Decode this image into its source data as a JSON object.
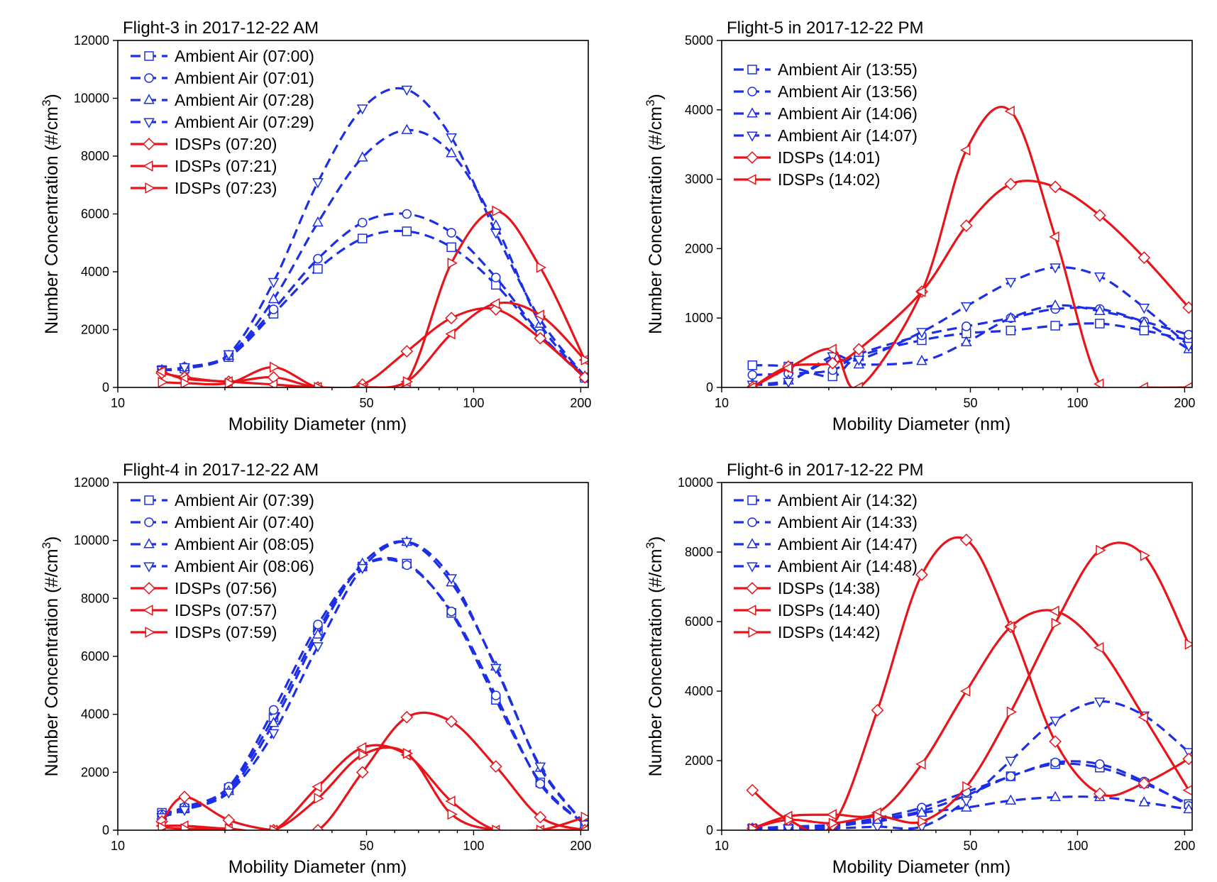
{
  "colors": {
    "ambient": "#1d2fe6",
    "idsp": "#e8141a"
  },
  "chart_data": [
    {
      "type": "line",
      "title": "Flight-3 in 2017-12-22 AM",
      "xlabel": "Mobility Diameter (nm)",
      "ylabel": "Number Concentration (#/cm",
      "ylabel_sup": "3",
      "ylabel_close": ")",
      "x_scale": "log",
      "xlim": [
        10,
        210
      ],
      "ylim": [
        0,
        12000
      ],
      "xticks": [
        10,
        50,
        100,
        200
      ],
      "xtick_labels": [
        "10",
        "50",
        "100",
        "200"
      ],
      "yticks": [
        0,
        2000,
        4000,
        6000,
        8000,
        10000,
        12000
      ],
      "ytick_labels": [
        "0",
        "2000",
        "4000",
        "6000",
        "8000",
        "10000",
        "12000"
      ],
      "legend_position": "top-left",
      "x": [
        13.3,
        15.4,
        20.5,
        27.4,
        36.5,
        48.7,
        64.9,
        86.6,
        115.5,
        153.9,
        205.4
      ],
      "series": [
        {
          "name": "Ambient Air (07:00)",
          "group": "ambient",
          "marker": "square",
          "values": [
            600,
            650,
            1050,
            2550,
            4100,
            5150,
            5400,
            4850,
            3550,
            1800,
            330
          ]
        },
        {
          "name": "Ambient Air (07:01)",
          "group": "ambient",
          "marker": "circle",
          "values": [
            600,
            700,
            1100,
            2700,
            4450,
            5700,
            6000,
            5350,
            3800,
            1850,
            350
          ]
        },
        {
          "name": "Ambient Air (07:28)",
          "group": "ambient",
          "marker": "triangle-up",
          "values": [
            600,
            700,
            1100,
            3050,
            5700,
            7950,
            8900,
            8100,
            5600,
            2200,
            380
          ]
        },
        {
          "name": "Ambient Air (07:29)",
          "group": "ambient",
          "marker": "triangle-down",
          "values": [
            600,
            700,
            1150,
            3650,
            7100,
            9650,
            10300,
            8650,
            5350,
            2350,
            380
          ]
        },
        {
          "name": "IDSPs (07:20)",
          "group": "idsp",
          "marker": "diamond",
          "values": [
            500,
            350,
            200,
            350,
            0,
            100,
            1250,
            2400,
            2700,
            1700,
            350
          ]
        },
        {
          "name": "IDSPs (07:21)",
          "group": "idsp",
          "marker": "triangle-left",
          "values": [
            550,
            300,
            200,
            100,
            0,
            0,
            200,
            1850,
            2900,
            2500,
            950
          ]
        },
        {
          "name": "IDSPs (07:23)",
          "group": "idsp",
          "marker": "triangle-right",
          "values": [
            180,
            150,
            150,
            700,
            0,
            0,
            200,
            4300,
            6100,
            4150,
            950
          ]
        }
      ]
    },
    {
      "type": "line",
      "title": "Flight-5 in 2017-12-22 PM",
      "xlabel": "Mobility Diameter (nm)",
      "ylabel": "Number Concentration (#/cm",
      "ylabel_sup": "3",
      "ylabel_close": ")",
      "x_scale": "log",
      "xlim": [
        10,
        210
      ],
      "ylim": [
        0,
        5000
      ],
      "xticks": [
        10,
        50,
        100,
        200
      ],
      "xtick_labels": [
        "10",
        "50",
        "100",
        "200"
      ],
      "yticks": [
        0,
        1000,
        2000,
        3000,
        4000,
        5000
      ],
      "ytick_labels": [
        "0",
        "1000",
        "2000",
        "3000",
        "4000",
        "5000"
      ],
      "legend_position": "top-left",
      "x": [
        12.2,
        15.4,
        20.5,
        24.3,
        36.5,
        48.7,
        64.9,
        86.6,
        115.5,
        153.9,
        205.4
      ],
      "series": [
        {
          "name": "Ambient Air (13:55)",
          "group": "ambient",
          "marker": "square",
          "values": [
            320,
            300,
            160,
            450,
            680,
            780,
            820,
            890,
            920,
            820,
            680
          ]
        },
        {
          "name": "Ambient Air (13:56)",
          "group": "ambient",
          "marker": "circle",
          "values": [
            180,
            200,
            250,
            480,
            750,
            880,
            1000,
            1130,
            1130,
            950,
            760
          ]
        },
        {
          "name": "Ambient Air (14:06)",
          "group": "ambient",
          "marker": "triangle-up",
          "values": [
            50,
            100,
            400,
            330,
            380,
            650,
            1000,
            1180,
            1100,
            930,
            550
          ]
        },
        {
          "name": "Ambient Air (14:07)",
          "group": "ambient",
          "marker": "triangle-down",
          "values": [
            40,
            80,
            450,
            400,
            800,
            1170,
            1520,
            1730,
            1600,
            1150,
            600
          ]
        },
        {
          "name": "IDSPs (14:01)",
          "group": "idsp",
          "marker": "diamond",
          "values": [
            0,
            300,
            350,
            550,
            1380,
            2330,
            2930,
            2890,
            2480,
            1870,
            1150
          ]
        },
        {
          "name": "IDSPs (14:02)",
          "group": "idsp",
          "marker": "triangle-left",
          "values": [
            0,
            280,
            550,
            0,
            1380,
            3420,
            3980,
            2170,
            50,
            0,
            0
          ]
        }
      ]
    },
    {
      "type": "line",
      "title": "Flight-4 in 2017-12-22 AM",
      "xlabel": "Mobility Diameter (nm)",
      "ylabel": "Number Concentration (#/cm",
      "ylabel_sup": "3",
      "ylabel_close": ")",
      "x_scale": "log",
      "xlim": [
        10,
        210
      ],
      "ylim": [
        0,
        12000
      ],
      "xticks": [
        10,
        50,
        100,
        200
      ],
      "xtick_labels": [
        "10",
        "50",
        "100",
        "200"
      ],
      "yticks": [
        0,
        2000,
        4000,
        6000,
        8000,
        10000,
        12000
      ],
      "ytick_labels": [
        "0",
        "2000",
        "4000",
        "6000",
        "8000",
        "10000",
        "12000"
      ],
      "legend_position": "top-left",
      "x": [
        13.3,
        15.4,
        20.5,
        27.4,
        36.5,
        48.7,
        64.9,
        86.6,
        115.5,
        153.9,
        205.4
      ],
      "series": [
        {
          "name": "Ambient Air (07:39)",
          "group": "ambient",
          "marker": "square",
          "values": [
            600,
            750,
            1450,
            3900,
            6900,
            9100,
            9200,
            7500,
            4500,
            1650,
            200
          ]
        },
        {
          "name": "Ambient Air (07:40)",
          "group": "ambient",
          "marker": "circle",
          "values": [
            550,
            800,
            1500,
            4150,
            7100,
            9100,
            9150,
            7550,
            4650,
            1600,
            200
          ]
        },
        {
          "name": "Ambient Air (08:05)",
          "group": "ambient",
          "marker": "triangle-up",
          "values": [
            500,
            750,
            1350,
            3700,
            6750,
            9200,
            9950,
            8550,
            5650,
            2150,
            200
          ]
        },
        {
          "name": "Ambient Air (08:06)",
          "group": "ambient",
          "marker": "triangle-down",
          "values": [
            450,
            700,
            1300,
            3350,
            6350,
            9050,
            9950,
            8700,
            5600,
            2200,
            200
          ]
        },
        {
          "name": "IDSPs (07:56)",
          "group": "idsp",
          "marker": "diamond",
          "values": [
            300,
            1150,
            350,
            0,
            0,
            2000,
            3900,
            3750,
            2200,
            450,
            0
          ]
        },
        {
          "name": "IDSPs (07:57)",
          "group": "idsp",
          "marker": "triangle-left",
          "values": [
            150,
            150,
            50,
            0,
            1500,
            2850,
            2600,
            1000,
            0,
            0,
            0
          ]
        },
        {
          "name": "IDSPs (07:59)",
          "group": "idsp",
          "marker": "triangle-right",
          "values": [
            100,
            50,
            50,
            0,
            1100,
            2600,
            2650,
            550,
            0,
            0,
            450
          ]
        }
      ]
    },
    {
      "type": "line",
      "title": "Flight-6 in 2017-12-22 PM",
      "xlabel": "Mobility Diameter (nm)",
      "ylabel": "Number Concentration (#/cm",
      "ylabel_sup": "3",
      "ylabel_close": ")",
      "x_scale": "log",
      "xlim": [
        10,
        210
      ],
      "ylim": [
        0,
        10000
      ],
      "xticks": [
        10,
        50,
        100,
        200
      ],
      "xtick_labels": [
        "10",
        "50",
        "100",
        "200"
      ],
      "yticks": [
        0,
        2000,
        4000,
        6000,
        8000,
        10000
      ],
      "ytick_labels": [
        "0",
        "2000",
        "4000",
        "6000",
        "8000",
        "10000"
      ],
      "legend_position": "top-left",
      "x": [
        12.2,
        15.4,
        20.5,
        27.4,
        36.5,
        48.7,
        64.9,
        86.6,
        115.5,
        153.9,
        205.4
      ],
      "series": [
        {
          "name": "Ambient Air (14:32)",
          "group": "ambient",
          "marker": "square",
          "values": [
            50,
            50,
            100,
            300,
            550,
            1000,
            1550,
            1900,
            1800,
            1350,
            750
          ]
        },
        {
          "name": "Ambient Air (14:33)",
          "group": "ambient",
          "marker": "circle",
          "values": [
            50,
            100,
            150,
            350,
            650,
            1100,
            1550,
            1950,
            1900,
            1400,
            700
          ]
        },
        {
          "name": "Ambient Air (14:47)",
          "group": "ambient",
          "marker": "triangle-up",
          "values": [
            50,
            100,
            150,
            250,
            500,
            650,
            850,
            950,
            950,
            800,
            600
          ]
        },
        {
          "name": "Ambient Air (14:48)",
          "group": "ambient",
          "marker": "triangle-down",
          "values": [
            50,
            50,
            50,
            100,
            100,
            850,
            2000,
            3150,
            3700,
            3300,
            2250
          ]
        },
        {
          "name": "IDSPs (14:38)",
          "group": "idsp",
          "marker": "diamond",
          "values": [
            1150,
            300,
            150,
            3450,
            7350,
            8350,
            5850,
            2550,
            1050,
            1350,
            2050
          ]
        },
        {
          "name": "IDSPs (14:40)",
          "group": "idsp",
          "marker": "triangle-left",
          "values": [
            50,
            400,
            450,
            500,
            1900,
            4000,
            5850,
            6300,
            5250,
            3250,
            1150
          ]
        },
        {
          "name": "IDSPs (14:42)",
          "group": "idsp",
          "marker": "triangle-right",
          "values": [
            50,
            300,
            200,
            400,
            250,
            1250,
            3400,
            5950,
            8050,
            7900,
            5350
          ]
        }
      ]
    }
  ]
}
